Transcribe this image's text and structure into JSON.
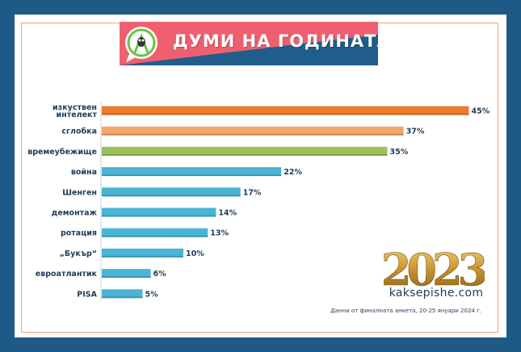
{
  "banner": {
    "title": "ДУМИ НА ГОДИНАТА",
    "logo_icon": "speech-bubble-owl-icon",
    "colors": {
      "left": "#ef5f6f",
      "right": "#1f5d8a",
      "text": "#ffffff"
    }
  },
  "chart_data": {
    "type": "bar",
    "orientation": "horizontal",
    "categories": [
      [
        "изкуствен",
        "интелект"
      ],
      [
        "сглобка"
      ],
      [
        "времеубежище"
      ],
      [
        "война"
      ],
      [
        "Шенген"
      ],
      [
        "демонтаж"
      ],
      [
        "ротация"
      ],
      [
        "„Букър“"
      ],
      [
        "евроатлантик"
      ],
      [
        "PISA"
      ]
    ],
    "values": [
      45,
      37,
      35,
      22,
      17,
      14,
      13,
      10,
      6,
      5
    ],
    "value_labels": [
      "45%",
      "37%",
      "35%",
      "22%",
      "17%",
      "14%",
      "13%",
      "10%",
      "6%",
      "5%"
    ],
    "bar_colors": [
      "#ee7a2b",
      "#f5a66d",
      "#9bc25a",
      "#4ab5d6",
      "#4ab5d6",
      "#4ab5d6",
      "#4ab5d6",
      "#4ab5d6",
      "#4ab5d6",
      "#4ab5d6"
    ],
    "xlim": [
      0,
      50
    ],
    "grid": false,
    "legend": "none"
  },
  "decor": {
    "year": "2023",
    "site": "kaksepishe.com",
    "note": "Данни от финалната анкета, 20-25 януари 2024 г."
  }
}
